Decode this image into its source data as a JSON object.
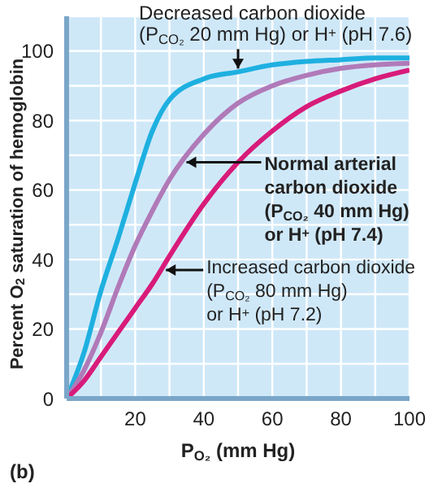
{
  "chart_data": {
    "type": "line",
    "xlabel": "P$_{O₂}$ (mm Hg)",
    "ylabel": "Percent O$_{2}$ saturation of hemoglobin",
    "x": [
      0,
      5,
      10,
      15,
      20,
      25,
      30,
      40,
      50,
      60,
      70,
      80,
      90,
      100
    ],
    "series": [
      {
        "color": "#1eb0e0",
        "values": [
          0,
          13,
          31,
          46,
          62,
          77,
          86,
          92,
          94,
          96,
          97,
          97.5,
          98,
          98
        ]
      },
      {
        "color": "#b07ab8",
        "values": [
          0,
          8,
          19,
          32,
          44,
          54,
          63,
          76,
          85,
          90,
          93,
          95,
          96,
          96.5
        ]
      },
      {
        "color": "#d81b7a",
        "values": [
          0,
          5,
          12,
          19,
          26,
          33,
          41,
          56,
          68,
          77,
          84,
          88.5,
          92,
          94.5
        ]
      }
    ],
    "xlim": [
      0,
      100
    ],
    "ylim": [
      0,
      110
    ],
    "xticks": [
      {
        "value": 0,
        "label": null
      },
      {
        "value": 10,
        "label": null
      },
      20,
      {
        "value": 30,
        "label": null
      },
      40,
      {
        "value": 50,
        "label": null
      },
      60,
      {
        "value": 70,
        "label": null
      },
      80,
      {
        "value": 90,
        "label": null
      },
      100
    ],
    "yticks": [
      0,
      {
        "value": 10,
        "label": null
      },
      20,
      {
        "value": 30,
        "label": null
      },
      40,
      {
        "value": 50,
        "label": null
      },
      60,
      {
        "value": 70,
        "label": null
      },
      80,
      {
        "value": 90,
        "label": null
      },
      100,
      {
        "value": 110,
        "label": null
      }
    ],
    "grid": true,
    "marker": "none",
    "line_style": "solid",
    "annotations": [
      {
        "text": "Decreased carbon dioxide\n(P$_{CO₂}$ 20 mm Hg) or H$^{+}$ (pH 7.6)",
        "x": 50,
        "y": 94
      },
      {
        "text": "Normal arterial\ncarbon dioxide\n(P$_{CO₂}$ 40 mm Hg)\nor H$^{+}$ (pH 7.4)",
        "x": 34,
        "y": 68
      },
      {
        "text": "Increased carbon dioxide\n(P$_{CO₂}$ 80 mm Hg)\nor H$^{+}$ (pH 7.2)",
        "x": 28,
        "y": 37
      },
      "(b)"
    ]
  }
}
